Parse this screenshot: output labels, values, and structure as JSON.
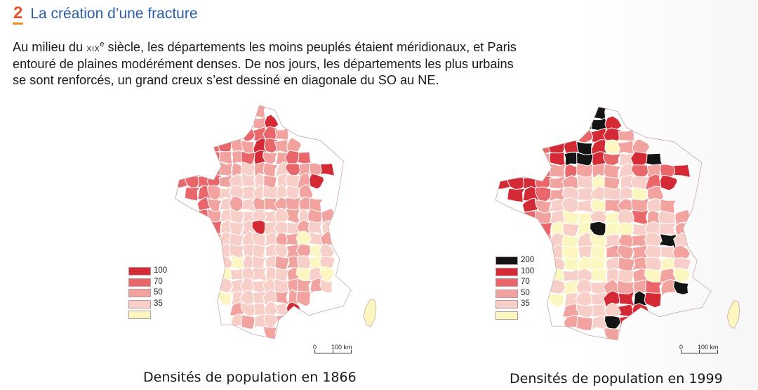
{
  "header": {
    "number": "2",
    "title": "La création d’une fracture"
  },
  "intro": {
    "line1_a": "Au milieu du ",
    "line1_century": "xix",
    "line1_sup": "e",
    "line1_b": " siècle, les départements les moins peuplés étaient méridionaux, et Paris",
    "line2": "entouré de plaines modérément denses. De nos jours, les départements les plus urbains",
    "line3": "se sont renforcés, un grand creux s’est dessiné en diagonale du SO au NE."
  },
  "colors": {
    "c200": "#141414",
    "c100": "#d32a35",
    "c70": "#e9676a",
    "c50": "#f2a39f",
    "c35": "#f8cfc8",
    "cLow": "#fcf6c1",
    "border": "#ffffff",
    "outline": "#c9a9a9"
  },
  "maps": [
    {
      "caption": "Densités de population en 1866",
      "legend": [
        "100",
        "70",
        "50",
        "35"
      ],
      "scale": {
        "zero": "0",
        "distance": "100 km"
      },
      "grid": [
        "......33.........",
        ".....1331........",
        "...3122223.......",
        "..222331233......",
        ".22233213322.....",
        "12223343342331...",
        "2222344434431....",
        ".22344444443.....",
        "..23434333333....",
        "..234444443433...",
        "...24441444344...",
        "...34444433543...",
        "...34444443354...",
        "...34544433454...",
        "...35444443545...",
        "....4444443334...",
        "....54444333.....",
        ".....344441......",
        ".....43443.......",
        "........3........"
      ],
      "islands": [
        {
          "name": "Jersey-like islet",
          "kind": "islet"
        }
      ]
    },
    {
      "caption": "Densités de population en 1999",
      "legend": [
        "200",
        "100",
        "70",
        "50",
        "35"
      ],
      "scale": {
        "zero": "0",
        "distance": "100 km"
      },
      "grid": [
        "......00.........",
        ".....0001........",
        "...3112113.......",
        "..221101533......",
        ".22310012410.....",
        "12223233342321...",
        "1112334534421....",
        ".11234444453.....",
        "..13444533343....",
        "..234554542343...",
        "...25450554443...",
        "...34545433404...",
        "...14545333443...",
        "...14555433454...",
        "...35445443535...",
        "....4544333230...",
        "....54441101.....",
        ".....344411......",
        ".....33401.......",
        "........3........"
      ]
    }
  ]
}
